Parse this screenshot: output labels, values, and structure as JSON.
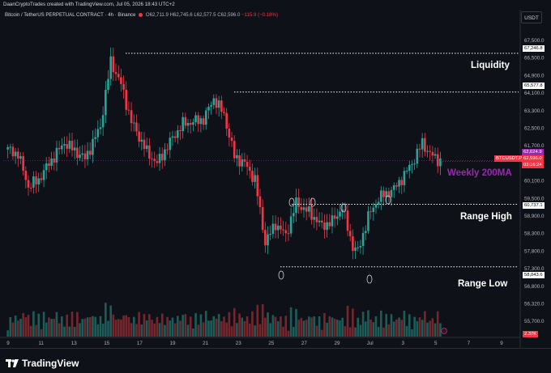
{
  "header": {
    "credit": "DaanCryptoTrades created with TradingView.com, Jul 05, 2026 18:43 UTC+2"
  },
  "currency_button": "USDT",
  "legend": {
    "symbol": "Bitcoin / TetherUS PERPETUAL CONTRACT · 4h · Binance",
    "open": "O62,711.9",
    "high": "H62,745.6",
    "low": "L62,577.5",
    "close": "C62,596.0",
    "change": "−115.9 (−0.18%)"
  },
  "price_axis": {
    "ticks": [
      "67,500.0",
      "66,500.0",
      "64,900.0",
      "64,100.0",
      "63,300.0",
      "62,500.0",
      "61,700.0",
      "61,200.0",
      "60,100.0",
      "59,500.0",
      "58,900.0",
      "58,300.0",
      "57,800.0",
      "57,300.0",
      "56,800.0",
      "56,320.0",
      "55,700.0"
    ],
    "level_labels": {
      "l1": "67,246.8",
      "l2": "65,577.8",
      "l3": "60,737.1",
      "l4": "58,043.6"
    },
    "last_price": {
      "ticker": "BTCUSDT.P",
      "price": "62,596.0",
      "timer": "03:16:24"
    },
    "ma_value": "62,624.9",
    "volume_value": "2.37K"
  },
  "time_axis": {
    "labels": [
      "9",
      "11",
      "13",
      "15",
      "17",
      "19",
      "21",
      "23",
      "25",
      "27",
      "29",
      "Jul",
      "3",
      "5",
      "7",
      "9"
    ]
  },
  "annotations": {
    "liquidity": "Liquidity",
    "weekly_ma": "Weekly 200MA",
    "range_high": "Range High",
    "range_low": "Range Low"
  },
  "footer": {
    "brand": "TradingView"
  },
  "colors": {
    "up": "#26a69a",
    "down": "#f23645",
    "ma_line": "#9c27b0",
    "background": "#0e1118"
  },
  "chart_data": {
    "type": "candlestick",
    "timeframe": "4h",
    "ylim": [
      55700,
      67800
    ],
    "key_levels": [
      67246.8,
      65577.8,
      60737.1,
      58043.6
    ],
    "weekly_200ma": 62624.9,
    "last_price": 62596.0,
    "anchors": [
      [
        0,
        63100
      ],
      [
        4,
        62900
      ],
      [
        8,
        61500
      ],
      [
        12,
        61800
      ],
      [
        16,
        62500
      ],
      [
        22,
        63400
      ],
      [
        30,
        62700
      ],
      [
        36,
        64100
      ],
      [
        40,
        66900
      ],
      [
        44,
        65900
      ],
      [
        48,
        64300
      ],
      [
        54,
        63000
      ],
      [
        58,
        62500
      ],
      [
        64,
        63600
      ],
      [
        68,
        64200
      ],
      [
        76,
        64400
      ],
      [
        80,
        65300
      ],
      [
        84,
        64600
      ],
      [
        88,
        62800
      ],
      [
        92,
        62500
      ],
      [
        96,
        61800
      ],
      [
        100,
        59100
      ],
      [
        104,
        59900
      ],
      [
        108,
        59400
      ],
      [
        112,
        60800
      ],
      [
        118,
        60300
      ],
      [
        122,
        59800
      ],
      [
        126,
        60000
      ],
      [
        130,
        60600
      ],
      [
        134,
        58900
      ],
      [
        136,
        58700
      ],
      [
        140,
        60200
      ],
      [
        144,
        61000
      ],
      [
        150,
        61400
      ],
      [
        154,
        62000
      ],
      [
        158,
        62700
      ],
      [
        161,
        63400
      ],
      [
        164,
        62900
      ],
      [
        168,
        62600
      ]
    ]
  }
}
